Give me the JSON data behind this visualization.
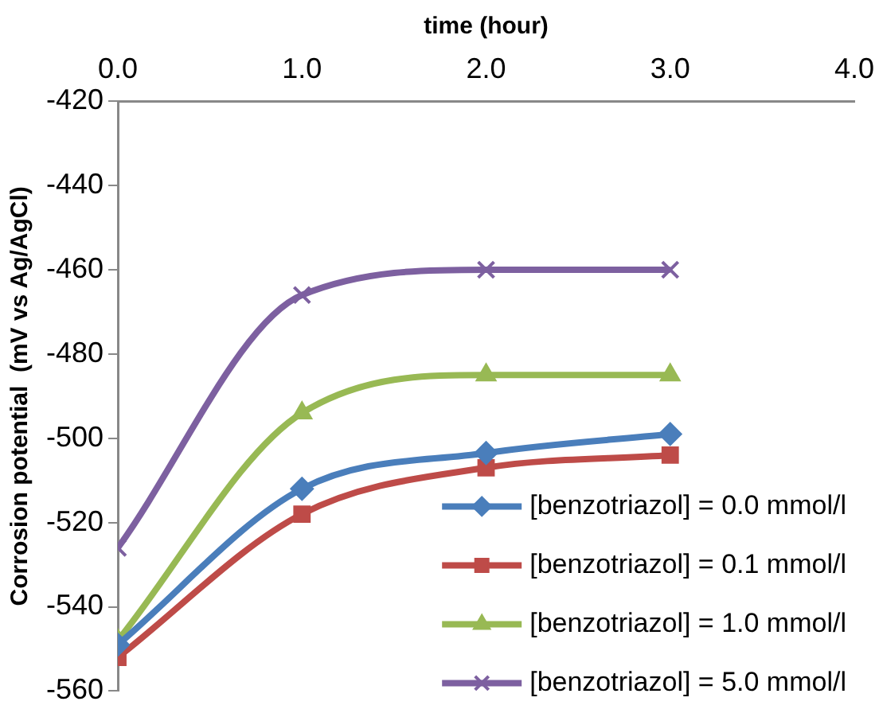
{
  "chart_data": {
    "type": "line",
    "xlabel": "time (hour)",
    "ylabel": "Corrosion potential  (mV vs Ag/AgCl)",
    "xlim": [
      0,
      4
    ],
    "xticks": [
      {
        "value": 0,
        "label": "0.0"
      },
      {
        "value": 1,
        "label": "1.0"
      },
      {
        "value": 2,
        "label": "2.0"
      },
      {
        "value": 3,
        "label": "3.0"
      },
      {
        "value": 4,
        "label": "4.0"
      }
    ],
    "ylim": [
      -560,
      -420
    ],
    "yticks": [
      -560,
      -540,
      -520,
      -500,
      -480,
      -460,
      -440,
      -420
    ],
    "x": [
      0,
      1,
      2,
      3
    ],
    "grid": false,
    "legend": "bottom right",
    "line_style": "solid",
    "series": [
      {
        "name": "[benzotriazol] = 0.0 mmol/l",
        "color": "#4a7ebb",
        "marker": "diamond",
        "values": [
          -549,
          -512,
          -503.5,
          -499
        ]
      },
      {
        "name": "[benzotriazol] = 0.1 mmol/l",
        "color": "#be4b48",
        "marker": "square",
        "values": [
          -552,
          -518,
          -507,
          -504
        ]
      },
      {
        "name": "[benzotriazol] = 1.0 mmol/l",
        "color": "#98b954",
        "marker": "triangle",
        "values": [
          -548,
          -494,
          -485,
          -485
        ]
      },
      {
        "name": "[benzotriazol] = 5.0 mmol/l",
        "color": "#7d60a0",
        "marker": "cross",
        "values": [
          -526,
          -466,
          -460,
          -460
        ]
      }
    ]
  }
}
